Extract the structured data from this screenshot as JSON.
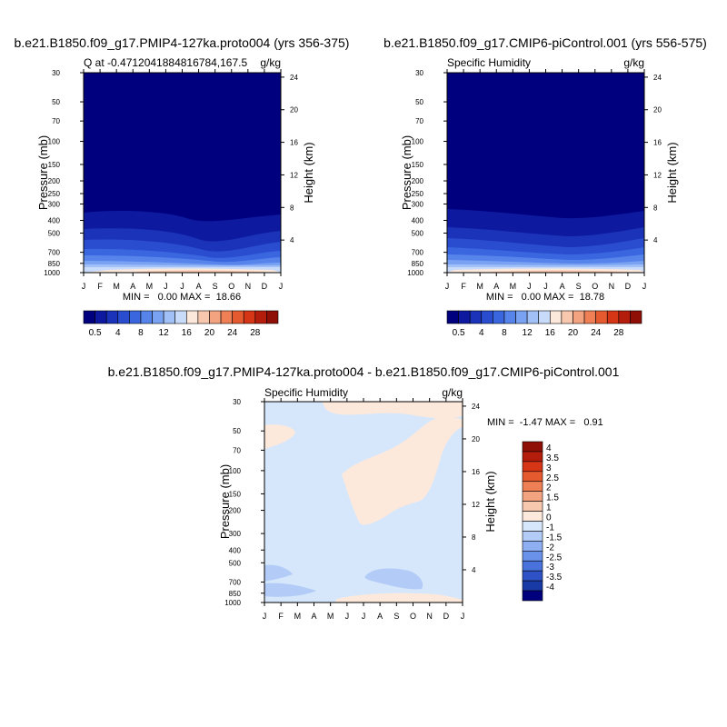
{
  "chart_data": [
    {
      "type": "heatmap",
      "title": "b.e21.B1850.f09_g17.PMIP4-127ka.proto004 (yrs 356-375)",
      "left_string": "Q at -0.4712041884816784,167.5",
      "right_string": "g/kg",
      "ylabel": "Pressure (mb)",
      "ylabel_right": "Height (km)",
      "x_ticks": [
        "J",
        "F",
        "M",
        "A",
        "M",
        "J",
        "J",
        "A",
        "S",
        "O",
        "N",
        "D",
        "J"
      ],
      "y_ticks": [
        30,
        50,
        70,
        100,
        150,
        200,
        250,
        300,
        400,
        500,
        700,
        850,
        1000
      ],
      "height_ticks": [
        4,
        8,
        12,
        16,
        20,
        24
      ],
      "min_max": "MIN =   0.00 MAX =  18.66",
      "min": 0.0,
      "max": 18.66,
      "colorbar": {
        "orientation": "horizontal",
        "tick_labels": [
          "0.5",
          "4",
          "8",
          "12",
          "16",
          "20",
          "24",
          "28"
        ],
        "colors": [
          "#00007f",
          "#0d1aa0",
          "#1b33b8",
          "#2a4dd0",
          "#3a66e0",
          "#5684eb",
          "#7aa2f2",
          "#a1c0f7",
          "#c8dbfa",
          "#fde9dc",
          "#f8c8ae",
          "#f4a380",
          "#ef7f55",
          "#e65a2f",
          "#d63516",
          "#b41d0b",
          "#8f0f06"
        ]
      },
      "surface_levels": {
        "mid_pressure": 350
      }
    },
    {
      "type": "heatmap",
      "title": "b.e21.B1850.f09_g17.CMIP6-piControl.001 (yrs 556-575)",
      "left_string": "Specific Humidity",
      "right_string": "g/kg",
      "ylabel": "Pressure (mb)",
      "ylabel_right": "Height (km)",
      "x_ticks": [
        "J",
        "F",
        "M",
        "A",
        "M",
        "J",
        "J",
        "A",
        "S",
        "O",
        "N",
        "D",
        "J"
      ],
      "y_ticks": [
        30,
        50,
        70,
        100,
        150,
        200,
        250,
        300,
        400,
        500,
        700,
        850,
        1000
      ],
      "height_ticks": [
        4,
        8,
        12,
        16,
        20,
        24
      ],
      "min_max": "MIN =   0.00 MAX =  18.78",
      "min": 0.0,
      "max": 18.78,
      "colorbar": {
        "orientation": "horizontal",
        "tick_labels": [
          "0.5",
          "4",
          "8",
          "12",
          "16",
          "20",
          "24",
          "28"
        ],
        "colors": [
          "#00007f",
          "#0d1aa0",
          "#1b33b8",
          "#2a4dd0",
          "#3a66e0",
          "#5684eb",
          "#7aa2f2",
          "#a1c0f7",
          "#c8dbfa",
          "#fde9dc",
          "#f8c8ae",
          "#f4a380",
          "#ef7f55",
          "#e65a2f",
          "#d63516",
          "#b41d0b",
          "#8f0f06"
        ]
      }
    },
    {
      "type": "heatmap",
      "title": "b.e21.B1850.f09_g17.PMIP4-127ka.proto004 - b.e21.B1850.f09_g17.CMIP6-piControl.001",
      "left_string": "Specific Humidity",
      "right_string": "g/kg",
      "ylabel": "Pressure (mb)",
      "ylabel_right": "Height (km)",
      "x_ticks": [
        "J",
        "F",
        "M",
        "A",
        "M",
        "J",
        "J",
        "A",
        "S",
        "O",
        "N",
        "D",
        "J"
      ],
      "y_ticks": [
        30,
        50,
        70,
        100,
        150,
        200,
        300,
        400,
        500,
        700,
        850,
        1000
      ],
      "height_ticks": [
        4,
        8,
        12,
        16,
        20,
        24
      ],
      "min_max": "MIN =  -1.47 MAX =   0.91",
      "min": -1.47,
      "max": 0.91,
      "colorbar": {
        "orientation": "vertical",
        "tick_labels": [
          "4",
          "3.5",
          "3",
          "2.5",
          "2",
          "1.5",
          "1",
          "0",
          "-1",
          "-1.5",
          "-2",
          "-2.5",
          "-3",
          "-3.5",
          "-4"
        ],
        "colors": [
          "#8f0f06",
          "#b41d0b",
          "#d63516",
          "#e65a2f",
          "#ef7f55",
          "#f4a380",
          "#f8c8ae",
          "#fde9dc",
          "#d6e7fb",
          "#b3ccf7",
          "#8eb0f2",
          "#6a92ea",
          "#4a72dd",
          "#2e52c6",
          "#183aa6",
          "#00007f"
        ]
      }
    }
  ],
  "colors": {
    "background_field_top": "#00007f",
    "diff_positive": "#fde9dc",
    "diff_negative_light": "#d6e7fb",
    "diff_negative": "#b3ccf7"
  }
}
